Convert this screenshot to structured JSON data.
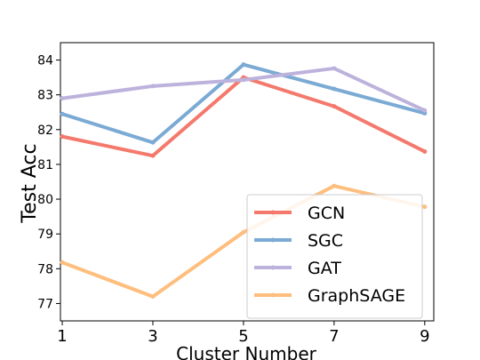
{
  "chart_data": {
    "type": "line",
    "title": "",
    "xlabel": "Cluster Number",
    "ylabel": "Test Acc",
    "x": [
      1,
      3,
      5,
      7,
      9
    ],
    "xlim": [
      0.96,
      9.2
    ],
    "ylim": [
      76.5,
      84.5
    ],
    "yticks": [
      77,
      78,
      79,
      80,
      81,
      82,
      83,
      84
    ],
    "grid": false,
    "legend_position": "lower-right",
    "series": [
      {
        "name": "GCN",
        "color": "#F4796C",
        "values": [
          81.8,
          81.25,
          83.5,
          82.67,
          81.37
        ]
      },
      {
        "name": "SGC",
        "color": "#7BAAD4",
        "values": [
          82.45,
          81.63,
          83.87,
          83.17,
          82.47
        ]
      },
      {
        "name": "GAT",
        "color": "#BDB2DC",
        "values": [
          82.9,
          83.25,
          83.43,
          83.76,
          82.55
        ]
      },
      {
        "name": "GraphSAGE",
        "color": "#FDBE7E",
        "values": [
          78.18,
          77.2,
          79.05,
          80.38,
          79.78
        ]
      }
    ]
  }
}
